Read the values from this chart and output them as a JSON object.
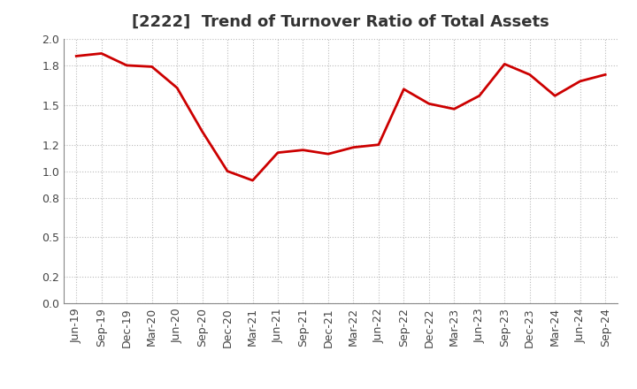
{
  "title": "[2222]  Trend of Turnover Ratio of Total Assets",
  "labels": [
    "Jun-19",
    "Sep-19",
    "Dec-19",
    "Mar-20",
    "Jun-20",
    "Sep-20",
    "Dec-20",
    "Mar-21",
    "Jun-21",
    "Sep-21",
    "Dec-21",
    "Mar-22",
    "Jun-22",
    "Sep-22",
    "Dec-22",
    "Mar-23",
    "Jun-23",
    "Sep-23",
    "Dec-23",
    "Mar-24",
    "Jun-24",
    "Sep-24"
  ],
  "values": [
    1.87,
    1.89,
    1.8,
    1.79,
    1.63,
    1.3,
    1.0,
    0.93,
    1.14,
    1.16,
    1.13,
    1.18,
    1.2,
    1.62,
    1.51,
    1.47,
    1.57,
    1.81,
    1.73,
    1.57,
    1.68,
    1.73
  ],
  "line_color": "#cc0000",
  "line_width": 2.0,
  "ylim": [
    0.0,
    2.0
  ],
  "yticks": [
    0.0,
    0.2,
    0.5,
    0.8,
    1.0,
    1.2,
    1.5,
    1.8,
    2.0
  ],
  "background_color": "#ffffff",
  "plot_bg_color": "#ffffff",
  "grid_color": "#bbbbbb",
  "title_fontsize": 13,
  "tick_fontsize": 9,
  "title_color": "#333333"
}
